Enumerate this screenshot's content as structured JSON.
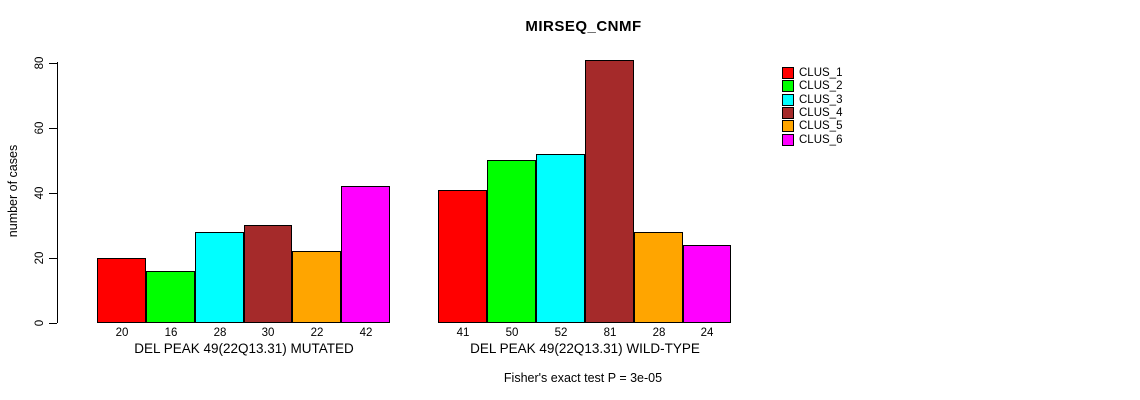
{
  "chart_data": {
    "type": "bar",
    "title": "MIRSEQ_CNMF",
    "ylabel": "number of cases",
    "ylim": [
      0,
      80
    ],
    "yticks": [
      0,
      20,
      40,
      60,
      80
    ],
    "grid": false,
    "legend_position": "right-inside",
    "annotation": "Fisher's exact test P = 3e-05",
    "series": [
      {
        "name": "CLUS_1",
        "color": "#FF0000"
      },
      {
        "name": "CLUS_2",
        "color": "#00FF00"
      },
      {
        "name": "CLUS_3",
        "color": "#00FFFF"
      },
      {
        "name": "CLUS_4",
        "color": "#A52A2A"
      },
      {
        "name": "CLUS_5",
        "color": "#FFA500"
      },
      {
        "name": "CLUS_6",
        "color": "#FF00FF"
      }
    ],
    "groups": [
      {
        "label": "DEL PEAK 49(22Q13.31) MUTATED",
        "values": [
          20,
          16,
          28,
          30,
          22,
          42
        ]
      },
      {
        "label": "DEL PEAK 49(22Q13.31) WILD-TYPE",
        "values": [
          41,
          50,
          52,
          81,
          28,
          24
        ]
      }
    ]
  }
}
